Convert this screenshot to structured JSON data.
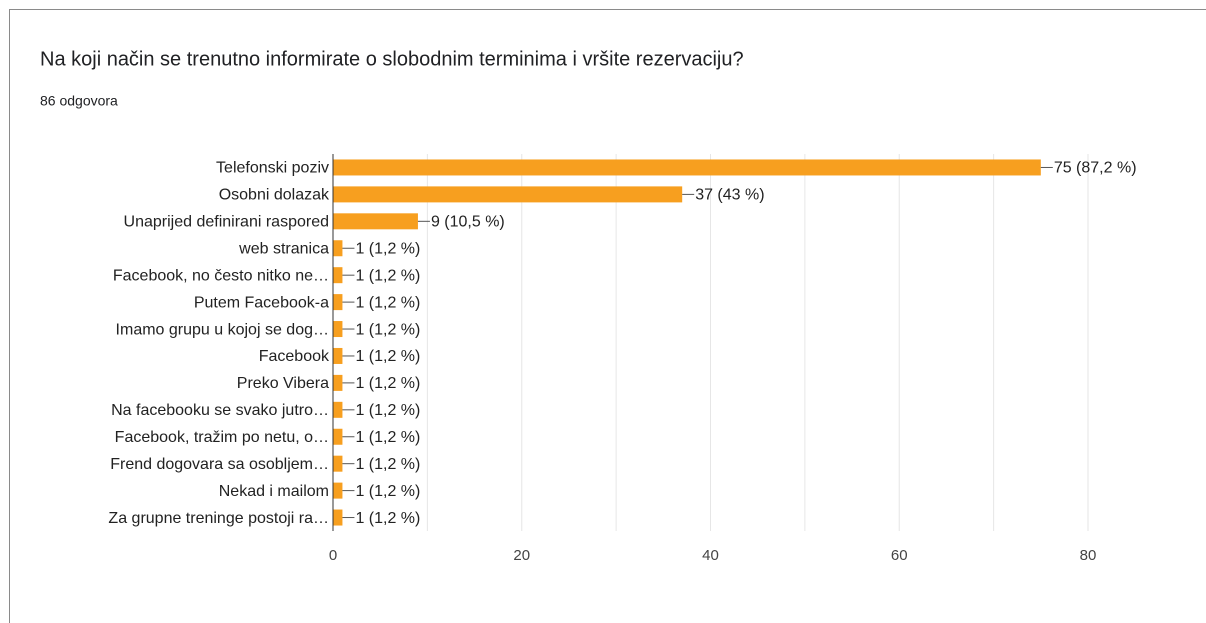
{
  "chart_data": {
    "type": "bar",
    "orientation": "horizontal",
    "title": "Na koji način se trenutno informirate o slobodnim terminima i vršite rezervaciju?",
    "subtitle": "86 odgovora",
    "categories": [
      "Telefonski poziv",
      "Osobni dolazak",
      "Unaprijed definirani raspored",
      "web stranica",
      "Facebook, no često nitko ne…",
      "Putem Facebook-a",
      "Imamo grupu u kojoj se dog…",
      "Facebook",
      "Preko Vibera",
      "Na facebooku se svako jutro…",
      "Facebook, tražim po netu, o…",
      "Frend dogovara sa osobljem…",
      "Nekad i mailom",
      "Za grupne treninge postoji ra…"
    ],
    "values": [
      75,
      37,
      9,
      1,
      1,
      1,
      1,
      1,
      1,
      1,
      1,
      1,
      1,
      1
    ],
    "value_labels": [
      "75 (87,2 %)",
      "37 (43 %)",
      "9 (10,5 %)",
      "1 (1,2 %)",
      "1 (1,2 %)",
      "1 (1,2 %)",
      "1 (1,2 %)",
      "1 (1,2 %)",
      "1 (1,2 %)",
      "1 (1,2 %)",
      "1 (1,2 %)",
      "1 (1,2 %)",
      "1 (1,2 %)",
      "1 (1,2 %)"
    ],
    "color": "#f79f1f",
    "xlim": [
      0,
      80
    ],
    "xticks": [
      0,
      20,
      40,
      60,
      80
    ],
    "grid_lines": [
      10,
      20,
      30,
      40,
      50,
      60,
      70,
      80
    ],
    "grid": true
  }
}
